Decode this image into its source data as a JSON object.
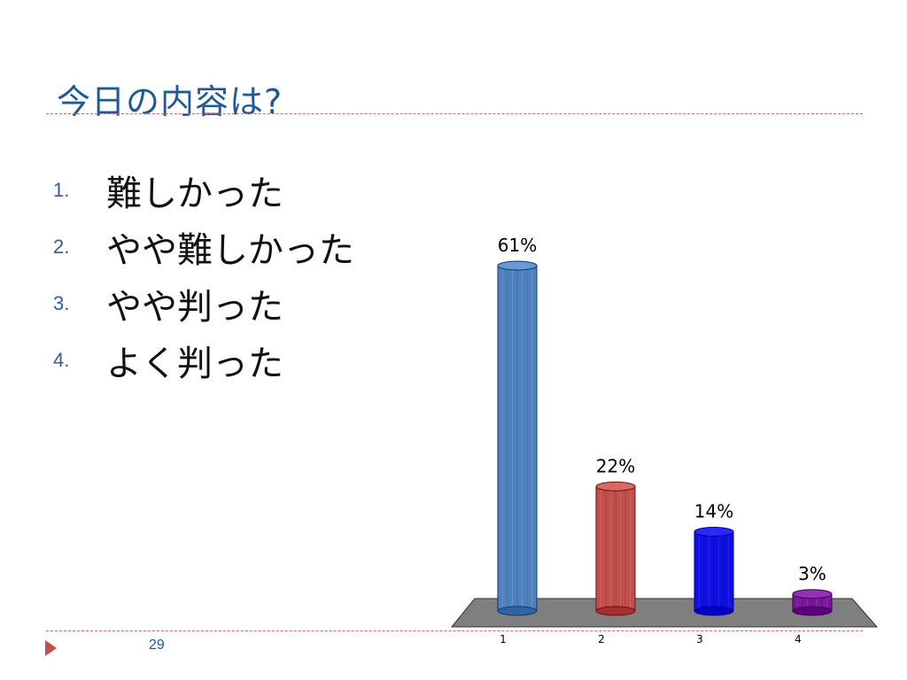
{
  "slide": {
    "title": "今日の内容は?",
    "page_number": "29"
  },
  "list": [
    {
      "marker": "1.",
      "text": "難しかった"
    },
    {
      "marker": "2.",
      "text": "やや難しかった"
    },
    {
      "marker": "3.",
      "text": "やや判った"
    },
    {
      "marker": "4.",
      "text": "よく判った"
    }
  ],
  "chart_data": {
    "type": "bar",
    "categories": [
      "1",
      "2",
      "3",
      "4"
    ],
    "values": [
      61,
      22,
      14,
      3
    ],
    "data_labels": [
      "61%",
      "22%",
      "14%",
      "3%"
    ],
    "colors": [
      "#4f81bd",
      "#c0504d",
      "#1010e0",
      "#7a1a9a"
    ],
    "title": "",
    "xlabel": "",
    "ylabel": "",
    "ylim": [
      0,
      61
    ],
    "grid": false,
    "style": "3d-cylinder"
  }
}
